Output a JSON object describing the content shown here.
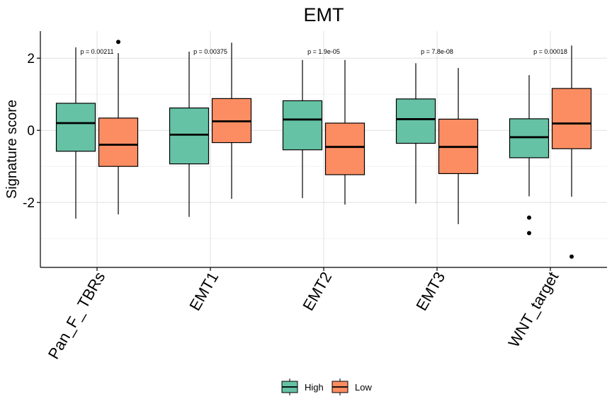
{
  "chart_data": {
    "type": "boxplot",
    "title": "EMT",
    "xlabel": "",
    "ylabel": "Signature score",
    "ylim": [
      -3.8,
      2.75
    ],
    "yticks": [
      -2,
      0,
      2
    ],
    "yminor": [
      -3,
      -1,
      1
    ],
    "categories": [
      "Pan_F_ TBRs",
      "EMT1",
      "EMT2",
      "EMT3",
      "WNT_target"
    ],
    "pvalues": [
      "p = 0.00211",
      "p = 0.00375",
      "p = 1.9e-05",
      "p = 7.8e-08",
      "p = 0.00018"
    ],
    "pvalue_y": 2.18,
    "series": [
      {
        "name": "High",
        "color": "#66c2a5",
        "boxes": [
          {
            "whisker_low": -2.45,
            "q1": -0.58,
            "median": 0.2,
            "q3": 0.75,
            "whisker_high": 2.3,
            "outliers": []
          },
          {
            "whisker_low": -2.4,
            "q1": -0.93,
            "median": -0.12,
            "q3": 0.62,
            "whisker_high": 2.18,
            "outliers": []
          },
          {
            "whisker_low": -1.88,
            "q1": -0.54,
            "median": 0.3,
            "q3": 0.82,
            "whisker_high": 1.95,
            "outliers": []
          },
          {
            "whisker_low": -2.03,
            "q1": -0.36,
            "median": 0.31,
            "q3": 0.87,
            "whisker_high": 1.86,
            "outliers": []
          },
          {
            "whisker_low": -1.83,
            "q1": -0.76,
            "median": -0.19,
            "q3": 0.32,
            "whisker_high": 1.53,
            "outliers": [
              -2.42,
              -2.85
            ]
          }
        ]
      },
      {
        "name": "Low",
        "color": "#fc8d62",
        "boxes": [
          {
            "whisker_low": -2.33,
            "q1": -1.0,
            "median": -0.4,
            "q3": 0.34,
            "whisker_high": 2.14,
            "outliers": [
              2.45
            ]
          },
          {
            "whisker_low": -1.9,
            "q1": -0.34,
            "median": 0.25,
            "q3": 0.88,
            "whisker_high": 2.43,
            "outliers": []
          },
          {
            "whisker_low": -2.06,
            "q1": -1.23,
            "median": -0.46,
            "q3": 0.2,
            "whisker_high": 1.95,
            "outliers": []
          },
          {
            "whisker_low": -2.6,
            "q1": -1.2,
            "median": -0.46,
            "q3": 0.31,
            "whisker_high": 1.73,
            "outliers": []
          },
          {
            "whisker_low": -1.84,
            "q1": -0.51,
            "median": 0.19,
            "q3": 1.16,
            "whisker_high": 2.35,
            "outliers": [
              -3.5
            ]
          }
        ]
      }
    ],
    "legend": {
      "position": "bottom",
      "items": [
        "High",
        "Low"
      ]
    },
    "grid": true
  }
}
